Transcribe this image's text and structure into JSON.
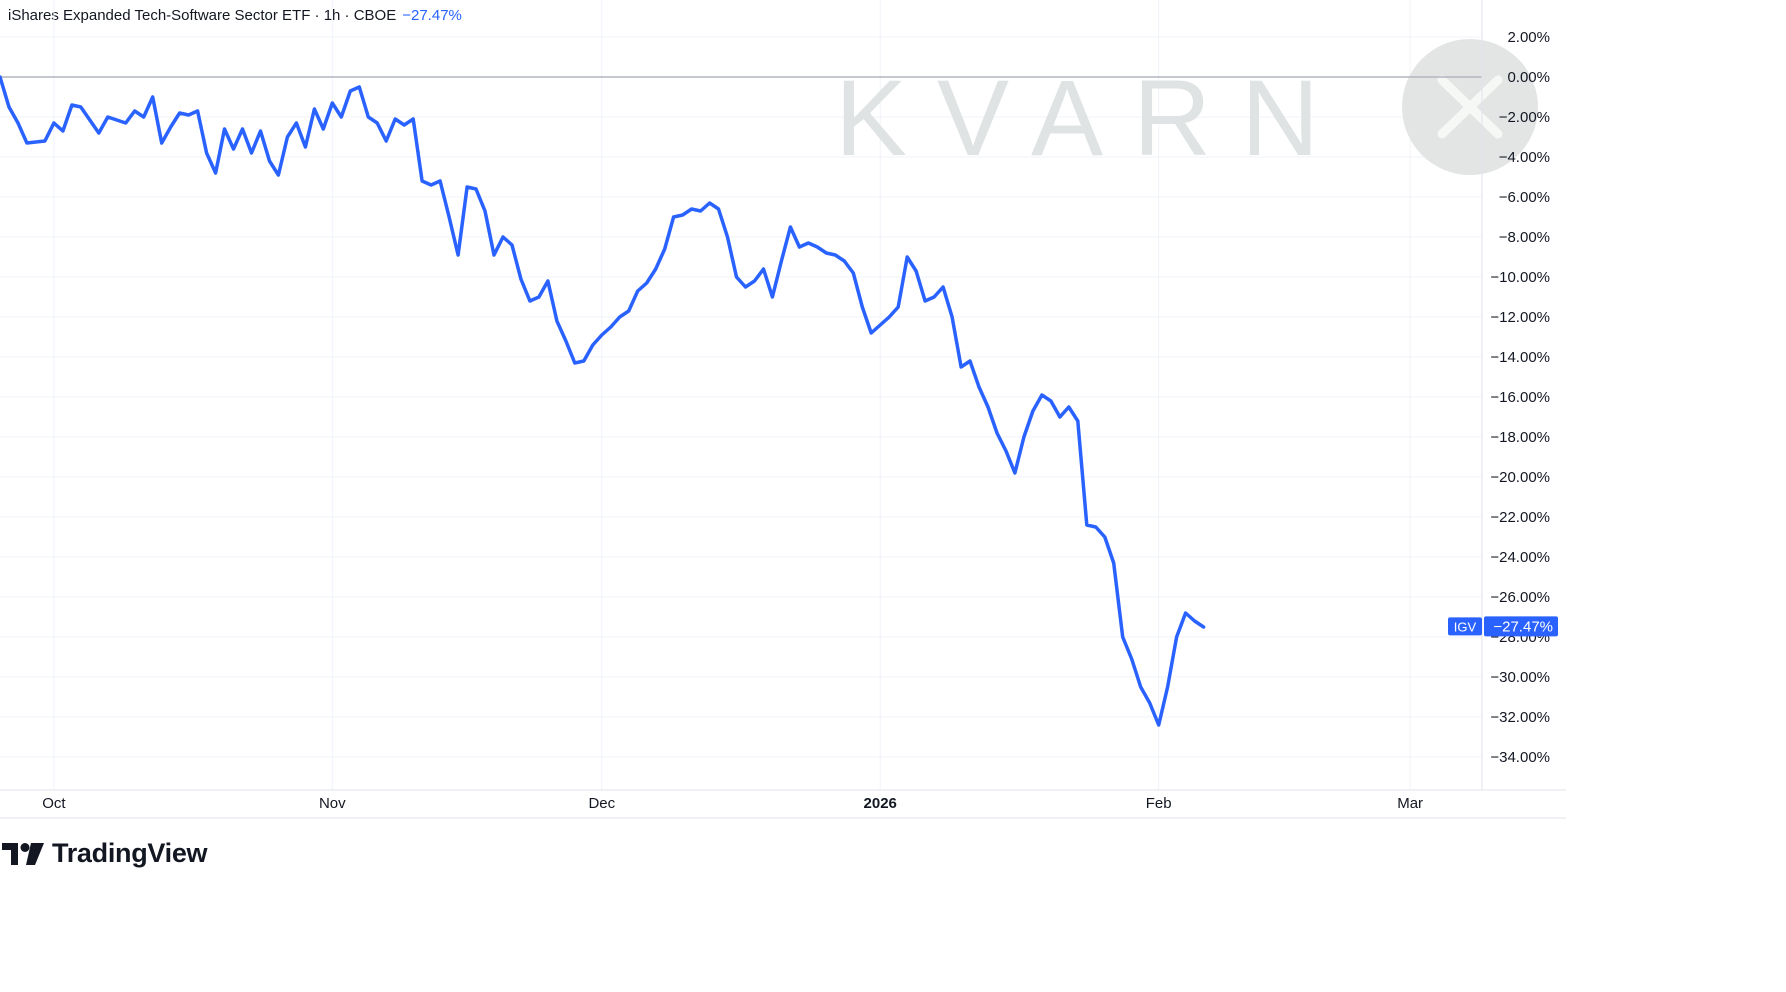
{
  "header": {
    "title": "iShares Expanded Tech-Software Sector ETF · 1h · CBOE",
    "change": "−27.47%"
  },
  "watermark": {
    "text": "KVARN"
  },
  "brand": {
    "name": "TradingView"
  },
  "colors": {
    "line": "#2962ff",
    "grid": "#f0f3fa",
    "zero_line": "#b2b5be",
    "text": "#131722"
  },
  "chart_data": {
    "type": "line",
    "ylabel": "",
    "xlabel": "",
    "ylim": [
      -36,
      3
    ],
    "y_ticks": [
      2,
      0,
      -2,
      -4,
      -6,
      -8,
      -10,
      -12,
      -14,
      -16,
      -18,
      -20,
      -22,
      -24,
      -26,
      -28,
      -30,
      -32,
      -34
    ],
    "y_tick_labels": [
      "2.00%",
      "0.00%",
      "−2.00%",
      "−4.00%",
      "−6.00%",
      "−8.00%",
      "−10.00%",
      "−12.00%",
      "−14.00%",
      "−16.00%",
      "−18.00%",
      "−20.00%",
      "−22.00%",
      "−24.00%",
      "−26.00%",
      "−28.00%",
      "−30.00%",
      "−32.00%",
      "−34.00%"
    ],
    "x_ticks": [
      {
        "label": "Oct",
        "date": "2025-10-01",
        "bold": false
      },
      {
        "label": "Nov",
        "date": "2025-11-01",
        "bold": false
      },
      {
        "label": "Dec",
        "date": "2025-12-01",
        "bold": false
      },
      {
        "label": "2026",
        "date": "2026-01-01",
        "bold": true
      },
      {
        "label": "Feb",
        "date": "2026-02-01",
        "bold": false
      },
      {
        "label": "Mar",
        "date": "2026-03-01",
        "bold": false
      }
    ],
    "xlim": [
      "2025-09-25",
      "2026-03-09"
    ],
    "last_value": {
      "symbol": "IGV",
      "label": "−27.47%",
      "value": -27.47
    },
    "series": [
      {
        "values": [
          [
            "2025-09-25",
            0.0
          ],
          [
            "2025-09-26",
            -1.5
          ],
          [
            "2025-09-27",
            -2.3
          ],
          [
            "2025-09-28",
            -3.3
          ],
          [
            "2025-09-30",
            -3.2
          ],
          [
            "2025-10-01",
            -2.3
          ],
          [
            "2025-10-02",
            -2.7
          ],
          [
            "2025-10-03",
            -1.4
          ],
          [
            "2025-10-04",
            -1.5
          ],
          [
            "2025-10-06",
            -2.8
          ],
          [
            "2025-10-07",
            -2.0
          ],
          [
            "2025-10-09",
            -2.3
          ],
          [
            "2025-10-10",
            -1.7
          ],
          [
            "2025-10-11",
            -2.0
          ],
          [
            "2025-10-12",
            -1.0
          ],
          [
            "2025-10-13",
            -3.3
          ],
          [
            "2025-10-14",
            -2.5
          ],
          [
            "2025-10-15",
            -1.8
          ],
          [
            "2025-10-16",
            -1.9
          ],
          [
            "2025-10-17",
            -1.7
          ],
          [
            "2025-10-18",
            -3.8
          ],
          [
            "2025-10-19",
            -4.8
          ],
          [
            "2025-10-20",
            -2.6
          ],
          [
            "2025-10-21",
            -3.6
          ],
          [
            "2025-10-22",
            -2.6
          ],
          [
            "2025-10-23",
            -3.8
          ],
          [
            "2025-10-24",
            -2.7
          ],
          [
            "2025-10-25",
            -4.2
          ],
          [
            "2025-10-26",
            -4.9
          ],
          [
            "2025-10-27",
            -3.0
          ],
          [
            "2025-10-28",
            -2.3
          ],
          [
            "2025-10-29",
            -3.5
          ],
          [
            "2025-10-30",
            -1.6
          ],
          [
            "2025-10-31",
            -2.6
          ],
          [
            "2025-11-01",
            -1.3
          ],
          [
            "2025-11-02",
            -2.0
          ],
          [
            "2025-11-03",
            -0.7
          ],
          [
            "2025-11-04",
            -0.5
          ],
          [
            "2025-11-05",
            -2.0
          ],
          [
            "2025-11-06",
            -2.3
          ],
          [
            "2025-11-07",
            -3.2
          ],
          [
            "2025-11-08",
            -2.1
          ],
          [
            "2025-11-09",
            -2.4
          ],
          [
            "2025-11-10",
            -2.1
          ],
          [
            "2025-11-11",
            -5.2
          ],
          [
            "2025-11-12",
            -5.4
          ],
          [
            "2025-11-13",
            -5.2
          ],
          [
            "2025-11-14",
            -7.0
          ],
          [
            "2025-11-15",
            -8.9
          ],
          [
            "2025-11-16",
            -5.5
          ],
          [
            "2025-11-17",
            -5.6
          ],
          [
            "2025-11-18",
            -6.7
          ],
          [
            "2025-11-19",
            -8.9
          ],
          [
            "2025-11-20",
            -8.0
          ],
          [
            "2025-11-21",
            -8.4
          ],
          [
            "2025-11-22",
            -10.1
          ],
          [
            "2025-11-23",
            -11.2
          ],
          [
            "2025-11-24",
            -11.0
          ],
          [
            "2025-11-25",
            -10.2
          ],
          [
            "2025-11-26",
            -12.2
          ],
          [
            "2025-11-27",
            -13.2
          ],
          [
            "2025-11-28",
            -14.3
          ],
          [
            "2025-11-29",
            -14.2
          ],
          [
            "2025-11-30",
            -13.4
          ],
          [
            "2025-12-01",
            -12.9
          ],
          [
            "2025-12-02",
            -12.5
          ],
          [
            "2025-12-03",
            -12.0
          ],
          [
            "2025-12-04",
            -11.7
          ],
          [
            "2025-12-05",
            -10.7
          ],
          [
            "2025-12-06",
            -10.3
          ],
          [
            "2025-12-07",
            -9.6
          ],
          [
            "2025-12-08",
            -8.6
          ],
          [
            "2025-12-09",
            -7.0
          ],
          [
            "2025-12-10",
            -6.9
          ],
          [
            "2025-12-11",
            -6.6
          ],
          [
            "2025-12-12",
            -6.7
          ],
          [
            "2025-12-13",
            -6.3
          ],
          [
            "2025-12-14",
            -6.6
          ],
          [
            "2025-12-15",
            -8.0
          ],
          [
            "2025-12-16",
            -10.0
          ],
          [
            "2025-12-17",
            -10.5
          ],
          [
            "2025-12-18",
            -10.2
          ],
          [
            "2025-12-19",
            -9.6
          ],
          [
            "2025-12-20",
            -11.0
          ],
          [
            "2025-12-21",
            -9.2
          ],
          [
            "2025-12-22",
            -7.5
          ],
          [
            "2025-12-23",
            -8.5
          ],
          [
            "2025-12-24",
            -8.3
          ],
          [
            "2025-12-25",
            -8.5
          ],
          [
            "2025-12-26",
            -8.8
          ],
          [
            "2025-12-27",
            -8.9
          ],
          [
            "2025-12-28",
            -9.2
          ],
          [
            "2025-12-29",
            -9.8
          ],
          [
            "2025-12-30",
            -11.5
          ],
          [
            "2025-12-31",
            -12.8
          ],
          [
            "2026-01-01",
            -12.4
          ],
          [
            "2026-01-02",
            -12.0
          ],
          [
            "2026-01-03",
            -11.5
          ],
          [
            "2026-01-04",
            -9.0
          ],
          [
            "2026-01-05",
            -9.7
          ],
          [
            "2026-01-06",
            -11.2
          ],
          [
            "2026-01-07",
            -11.0
          ],
          [
            "2026-01-08",
            -10.5
          ],
          [
            "2026-01-09",
            -12.0
          ],
          [
            "2026-01-10",
            -14.5
          ],
          [
            "2026-01-11",
            -14.2
          ],
          [
            "2026-01-12",
            -15.5
          ],
          [
            "2026-01-13",
            -16.5
          ],
          [
            "2026-01-14",
            -17.8
          ],
          [
            "2026-01-15",
            -18.7
          ],
          [
            "2026-01-16",
            -19.8
          ],
          [
            "2026-01-17",
            -18.0
          ],
          [
            "2026-01-18",
            -16.7
          ],
          [
            "2026-01-19",
            -15.9
          ],
          [
            "2026-01-20",
            -16.2
          ],
          [
            "2026-01-21",
            -17.0
          ],
          [
            "2026-01-22",
            -16.5
          ],
          [
            "2026-01-23",
            -17.2
          ],
          [
            "2026-01-24",
            -22.4
          ],
          [
            "2026-01-25",
            -22.5
          ],
          [
            "2026-01-26",
            -23.0
          ],
          [
            "2026-01-27",
            -24.3
          ],
          [
            "2026-01-28",
            -28.0
          ],
          [
            "2026-01-29",
            -29.1
          ],
          [
            "2026-01-30",
            -30.5
          ],
          [
            "2026-01-31",
            -31.3
          ],
          [
            "2026-02-01",
            -32.4
          ],
          [
            "2026-02-02",
            -30.5
          ],
          [
            "2026-02-03",
            -28.0
          ],
          [
            "2026-02-04",
            -26.8
          ],
          [
            "2026-02-05",
            -27.2
          ],
          [
            "2026-02-06",
            -27.5
          ]
        ]
      }
    ],
    "grid": true
  }
}
